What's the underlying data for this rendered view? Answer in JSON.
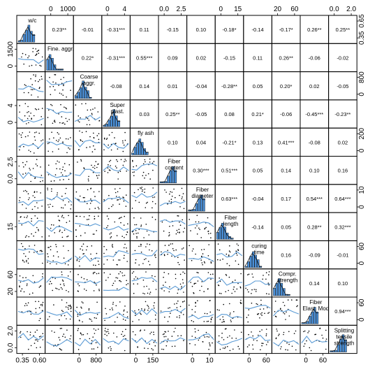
{
  "chart_data": {
    "type": "scatter-matrix",
    "variables": [
      "w/c",
      "Fine. aggr.",
      "Coarse aggr.",
      "Super plast.",
      "fly ash",
      "Fiber content",
      "Fiber diameter",
      "Fiber length",
      "curing time",
      "Compr. strength",
      "Fiber Elast. Mod",
      "Splitting tensile strength"
    ],
    "diagonal_labels": [
      [
        "w/c"
      ],
      [
        "Fine. aggr."
      ],
      [
        "Coarse",
        "aggr."
      ],
      [
        "Super",
        "plast."
      ],
      [
        "fly ash"
      ],
      [
        "Fiber",
        "content"
      ],
      [
        "Fiber",
        "diameter"
      ],
      [
        "Fiber",
        "length"
      ],
      [
        "curing",
        "time"
      ],
      [
        "Compr.",
        "strength"
      ],
      [
        "Fiber",
        "Elast. Mod"
      ],
      [
        "Splitting",
        "tensile",
        "strength"
      ]
    ],
    "correlations": [
      {
        "row": 0,
        "col": 1,
        "text": "0.23**"
      },
      {
        "row": 0,
        "col": 2,
        "text": "-0.01"
      },
      {
        "row": 0,
        "col": 3,
        "text": "-0.31***"
      },
      {
        "row": 0,
        "col": 4,
        "text": "0.11"
      },
      {
        "row": 0,
        "col": 5,
        "text": "-0.15"
      },
      {
        "row": 0,
        "col": 6,
        "text": "0.10"
      },
      {
        "row": 0,
        "col": 7,
        "text": "-0.18*"
      },
      {
        "row": 0,
        "col": 8,
        "text": "-0.14"
      },
      {
        "row": 0,
        "col": 9,
        "text": "-0.17*"
      },
      {
        "row": 0,
        "col": 10,
        "text": "0.26**"
      },
      {
        "row": 0,
        "col": 11,
        "text": "0.25**"
      },
      {
        "row": 1,
        "col": 2,
        "text": "0.22*"
      },
      {
        "row": 1,
        "col": 3,
        "text": "-0.31***"
      },
      {
        "row": 1,
        "col": 4,
        "text": "0.55***"
      },
      {
        "row": 1,
        "col": 5,
        "text": "0.09"
      },
      {
        "row": 1,
        "col": 6,
        "text": "0.02"
      },
      {
        "row": 1,
        "col": 7,
        "text": "-0.15"
      },
      {
        "row": 1,
        "col": 8,
        "text": "0.11"
      },
      {
        "row": 1,
        "col": 9,
        "text": "0.26**"
      },
      {
        "row": 1,
        "col": 10,
        "text": "-0.06"
      },
      {
        "row": 1,
        "col": 11,
        "text": "-0.02"
      },
      {
        "row": 2,
        "col": 3,
        "text": "-0.08"
      },
      {
        "row": 2,
        "col": 4,
        "text": "0.14"
      },
      {
        "row": 2,
        "col": 5,
        "text": "0.01"
      },
      {
        "row": 2,
        "col": 6,
        "text": "-0.04"
      },
      {
        "row": 2,
        "col": 7,
        "text": "-0.28**"
      },
      {
        "row": 2,
        "col": 8,
        "text": "0.05"
      },
      {
        "row": 2,
        "col": 9,
        "text": "0.20*"
      },
      {
        "row": 2,
        "col": 10,
        "text": "0.02"
      },
      {
        "row": 2,
        "col": 11,
        "text": "-0.05"
      },
      {
        "row": 3,
        "col": 4,
        "text": "0.03"
      },
      {
        "row": 3,
        "col": 5,
        "text": "0.25**"
      },
      {
        "row": 3,
        "col": 6,
        "text": "-0.05"
      },
      {
        "row": 3,
        "col": 7,
        "text": "0.08"
      },
      {
        "row": 3,
        "col": 8,
        "text": "0.21*"
      },
      {
        "row": 3,
        "col": 9,
        "text": "-0.06"
      },
      {
        "row": 3,
        "col": 10,
        "text": "-0.45***"
      },
      {
        "row": 3,
        "col": 11,
        "text": "-0.23**"
      },
      {
        "row": 4,
        "col": 5,
        "text": "0.10"
      },
      {
        "row": 4,
        "col": 6,
        "text": "0.04"
      },
      {
        "row": 4,
        "col": 7,
        "text": "-0.21*"
      },
      {
        "row": 4,
        "col": 8,
        "text": "0.13"
      },
      {
        "row": 4,
        "col": 9,
        "text": "0.41***"
      },
      {
        "row": 4,
        "col": 10,
        "text": "-0.08"
      },
      {
        "row": 4,
        "col": 11,
        "text": "0.02"
      },
      {
        "row": 5,
        "col": 6,
        "text": "0.30***"
      },
      {
        "row": 5,
        "col": 7,
        "text": "0.51***"
      },
      {
        "row": 5,
        "col": 8,
        "text": "0.05"
      },
      {
        "row": 5,
        "col": 9,
        "text": "0.14"
      },
      {
        "row": 5,
        "col": 10,
        "text": "0.10"
      },
      {
        "row": 5,
        "col": 11,
        "text": "0.16"
      },
      {
        "row": 6,
        "col": 7,
        "text": "0.63***"
      },
      {
        "row": 6,
        "col": 8,
        "text": "-0.04"
      },
      {
        "row": 6,
        "col": 9,
        "text": "0.17"
      },
      {
        "row": 6,
        "col": 10,
        "text": "0.54***"
      },
      {
        "row": 6,
        "col": 11,
        "text": "0.64***"
      },
      {
        "row": 7,
        "col": 8,
        "text": "-0.14"
      },
      {
        "row": 7,
        "col": 9,
        "text": "0.05"
      },
      {
        "row": 7,
        "col": 10,
        "text": "0.28**"
      },
      {
        "row": 7,
        "col": 11,
        "text": "0.32***"
      },
      {
        "row": 8,
        "col": 9,
        "text": "0.16"
      },
      {
        "row": 8,
        "col": 10,
        "text": "-0.09"
      },
      {
        "row": 8,
        "col": 11,
        "text": "-0.01"
      },
      {
        "row": 9,
        "col": 10,
        "text": "0.14"
      },
      {
        "row": 9,
        "col": 11,
        "text": "0.10"
      },
      {
        "row": 10,
        "col": 11,
        "text": "0.94***"
      }
    ],
    "axis_ticks": {
      "top": [
        {
          "panel": 1,
          "labels": [
            "0",
            "1000"
          ]
        },
        {
          "panel": 3,
          "labels": [
            "0",
            "4"
          ]
        },
        {
          "panel": 5,
          "labels": [
            "0.0",
            "2.5"
          ]
        },
        {
          "panel": 7,
          "labels": [
            "0",
            "15"
          ]
        },
        {
          "panel": 9,
          "labels": [
            "20",
            "60"
          ]
        },
        {
          "panel": 11,
          "labels": [
            "0.0",
            "2.0"
          ]
        }
      ],
      "bottom": [
        {
          "panel": 0,
          "labels": [
            "0.35",
            "0.60"
          ]
        },
        {
          "panel": 2,
          "labels": [
            "0",
            "800"
          ]
        },
        {
          "panel": 4,
          "labels": [
            "0",
            "150"
          ]
        },
        {
          "panel": 6,
          "labels": [
            "0",
            "10"
          ]
        },
        {
          "panel": 8,
          "labels": [
            "0",
            "60"
          ]
        },
        {
          "panel": 10,
          "labels": [
            "0",
            "60"
          ]
        }
      ],
      "left": [
        {
          "panel": 1,
          "labels": [
            "0",
            "1500"
          ]
        },
        {
          "panel": 3,
          "labels": [
            "0",
            "4"
          ]
        },
        {
          "panel": 5,
          "labels": [
            "0.0",
            "2.5"
          ]
        },
        {
          "panel": 7,
          "labels": [
            "15"
          ]
        },
        {
          "panel": 9,
          "labels": [
            "20",
            "60"
          ]
        },
        {
          "panel": 11,
          "labels": [
            "0.0",
            "2.0"
          ]
        }
      ],
      "right": [
        {
          "panel": 0,
          "labels": [
            "0.35",
            "0.65"
          ]
        },
        {
          "panel": 2,
          "labels": [
            "0",
            "800"
          ]
        },
        {
          "panel": 4,
          "labels": [
            "0",
            "200"
          ]
        },
        {
          "panel": 6,
          "labels": [
            "0",
            "10"
          ]
        },
        {
          "panel": 8,
          "labels": [
            "0",
            "60"
          ]
        },
        {
          "panel": 10,
          "labels": [
            "0",
            "60"
          ]
        }
      ]
    },
    "colors": {
      "histogram_fill": "#4a90d9",
      "smooth_line": "#5b9bd5",
      "points": "#000000",
      "frame": "#000000"
    }
  }
}
